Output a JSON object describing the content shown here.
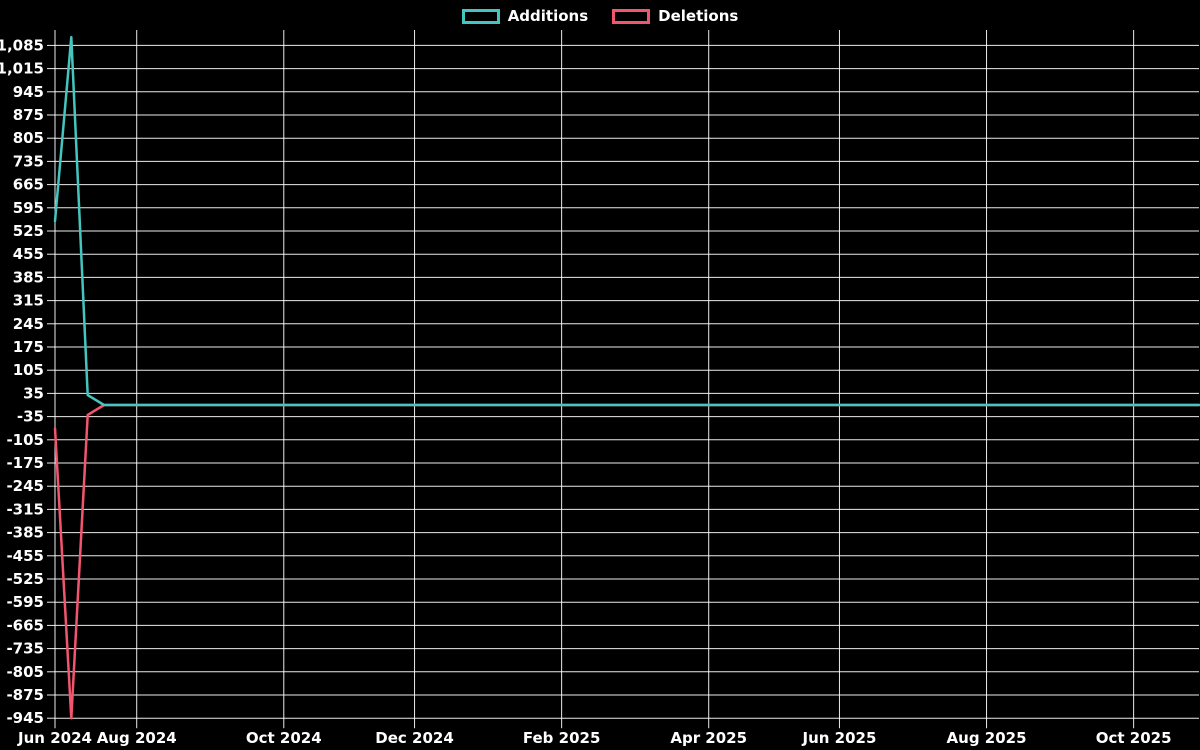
{
  "chart_data": {
    "type": "line",
    "description": "Weekly code additions and deletions over repository lifetime",
    "background_color": "#000000",
    "grid": true,
    "legend_position": "top-center",
    "x_unit": "week",
    "x_tick_labels": [
      "Jun 2024",
      "Aug 2024",
      "Oct 2024",
      "Dec 2024",
      "Feb 2025",
      "Apr 2025",
      "Jun 2025",
      "Aug 2025",
      "Oct 2025"
    ],
    "x_tick_weeks": [
      0,
      5,
      14,
      22,
      31,
      40,
      48,
      57,
      66
    ],
    "y_max": 1085,
    "y_min": -945,
    "y_step": 70,
    "y_tick_labels": [
      "1,085",
      "1,015",
      "945",
      "875",
      "805",
      "735",
      "665",
      "595",
      "525",
      "455",
      "385",
      "315",
      "245",
      "175",
      "105",
      "35",
      "-35",
      "-105",
      "-175",
      "-245",
      "-315",
      "-385",
      "-455",
      "-525",
      "-595",
      "-665",
      "-735",
      "-805",
      "-875",
      "-945"
    ],
    "series": [
      {
        "name": "Additions",
        "color": "#45C5C0",
        "values": [
          555,
          1110,
          30,
          0,
          0,
          0,
          0,
          0,
          0,
          0,
          0,
          0,
          0,
          0,
          0,
          0,
          0,
          0,
          0,
          0,
          0,
          0,
          0,
          0,
          0,
          0,
          0,
          0,
          0,
          0,
          0,
          0,
          0,
          0,
          0,
          0,
          0,
          0,
          0,
          0,
          0,
          0,
          0,
          0,
          0,
          0,
          0,
          0,
          0,
          0,
          0,
          0,
          0,
          0,
          0,
          0,
          0,
          0,
          0,
          0,
          0,
          0,
          0,
          0,
          0,
          0,
          0,
          0,
          0,
          0,
          0
        ]
      },
      {
        "name": "Deletions",
        "color": "#F2566F",
        "values": [
          -70,
          -945,
          -30,
          0,
          0,
          0,
          0,
          0,
          0,
          0,
          0,
          0,
          0,
          0,
          0,
          0,
          0,
          0,
          0,
          0,
          0,
          0,
          0,
          0,
          0,
          0,
          0,
          0,
          0,
          0,
          0,
          0,
          0,
          0,
          0,
          0,
          0,
          0,
          0,
          0,
          0,
          0,
          0,
          0,
          0,
          0,
          0,
          0,
          0,
          0,
          0,
          0,
          0,
          0,
          0,
          0,
          0,
          0,
          0,
          0,
          0,
          0,
          0,
          0,
          0,
          0,
          0,
          0,
          0,
          0,
          0
        ]
      }
    ]
  }
}
